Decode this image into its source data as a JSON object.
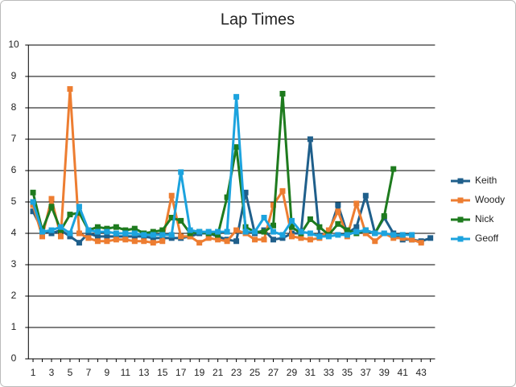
{
  "chart_data": {
    "type": "line",
    "title": "Lap Times",
    "categories": [
      1,
      null,
      3,
      null,
      5,
      null,
      7,
      null,
      9,
      null,
      11,
      null,
      13,
      null,
      15,
      null,
      17,
      null,
      19,
      null,
      21,
      null,
      23,
      null,
      25,
      null,
      27,
      null,
      29,
      null,
      31,
      null,
      33,
      null,
      35,
      null,
      37,
      null,
      39,
      null,
      41,
      null,
      43,
      null
    ],
    "ylim": [
      0,
      10
    ],
    "yticks": [
      0,
      1,
      2,
      3,
      4,
      5,
      6,
      7,
      8,
      9,
      10
    ],
    "grid": true,
    "legend": "right",
    "series": [
      {
        "name": "Keith",
        "color": "#1f5f8b",
        "values": [
          4.7,
          4.1,
          4.0,
          4.1,
          3.9,
          3.7,
          4.0,
          3.9,
          3.9,
          3.9,
          3.9,
          3.9,
          3.9,
          3.85,
          3.85,
          3.85,
          3.85,
          3.9,
          4.0,
          4.0,
          3.9,
          3.8,
          3.75,
          5.3,
          4.0,
          4.1,
          3.8,
          3.85,
          4.0,
          4.0,
          7.0,
          3.9,
          4.0,
          4.9,
          4.0,
          4.2,
          5.2,
          4.0,
          4.5,
          4.0,
          3.8,
          3.8,
          3.75,
          3.85
        ]
      },
      {
        "name": "Woody",
        "color": "#ed7d31",
        "values": [
          4.9,
          3.9,
          5.1,
          3.9,
          8.6,
          4.0,
          3.85,
          3.75,
          3.75,
          3.8,
          3.8,
          3.75,
          3.75,
          3.7,
          3.75,
          5.2,
          3.9,
          3.9,
          3.7,
          3.85,
          3.8,
          3.75,
          4.1,
          4.0,
          3.8,
          3.8,
          4.9,
          5.35,
          3.9,
          3.85,
          3.8,
          3.85,
          4.1,
          4.7,
          3.9,
          4.95,
          4.0,
          3.75,
          4.0,
          3.85,
          3.85,
          3.8,
          3.7,
          null
        ]
      },
      {
        "name": "Nick",
        "color": "#1e7b1e",
        "values": [
          5.3,
          4.1,
          4.85,
          4.1,
          4.6,
          4.65,
          4.1,
          4.2,
          4.15,
          4.2,
          4.1,
          4.15,
          4.0,
          4.05,
          4.1,
          4.5,
          4.4,
          4.0,
          4.05,
          4.0,
          3.95,
          5.15,
          6.75,
          4.2,
          4.05,
          4.05,
          4.25,
          8.45,
          4.2,
          4.0,
          4.45,
          4.2,
          3.95,
          4.3,
          4.1,
          4.0,
          4.1,
          4.0,
          4.55,
          6.05,
          null,
          null,
          null,
          null
        ]
      },
      {
        "name": "Geoff",
        "color": "#1ca3de",
        "values": [
          5.0,
          4.05,
          4.1,
          4.2,
          4.0,
          4.85,
          4.1,
          4.05,
          4.05,
          4.0,
          4.0,
          4.0,
          3.95,
          3.95,
          3.95,
          3.95,
          5.95,
          4.1,
          4.05,
          4.05,
          4.05,
          4.05,
          8.35,
          4.05,
          4.05,
          4.5,
          4.05,
          3.95,
          4.4,
          4.05,
          4.0,
          3.9,
          3.9,
          3.95,
          3.95,
          4.05,
          4.1,
          4.0,
          4.0,
          3.95,
          3.95,
          3.95,
          null,
          null
        ]
      }
    ]
  }
}
